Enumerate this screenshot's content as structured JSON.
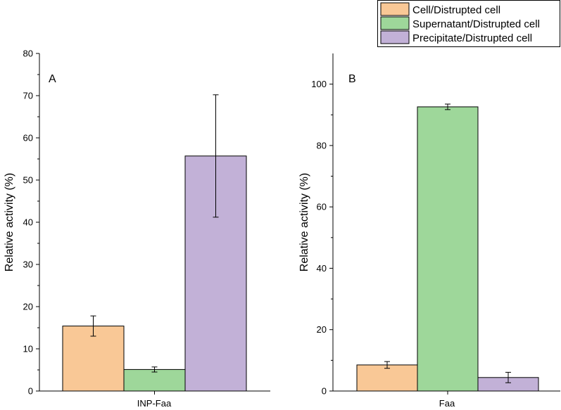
{
  "colors": {
    "cell": "#f9c896",
    "supernatant": "#9ed79a",
    "precipitate": "#c2b1d7",
    "axis": "#000000"
  },
  "legend": {
    "position": "top-right",
    "items": [
      {
        "label": "Cell/Distrupted cell",
        "color_key": "cell"
      },
      {
        "label": "Supernatant/Distrupted cell",
        "color_key": "supernatant"
      },
      {
        "label": "Precipitate/Distrupted cell",
        "color_key": "precipitate"
      }
    ]
  },
  "chart_data": [
    {
      "type": "bar",
      "panel_label": "A",
      "categories": [
        "INP-Faa"
      ],
      "ylabel": "Relative activity (%)",
      "xlabel": "",
      "ylim": [
        0,
        80
      ],
      "yticks": [
        0,
        10,
        20,
        30,
        40,
        50,
        60,
        70,
        80
      ],
      "series": [
        {
          "name": "Cell/Distrupted cell",
          "color_key": "cell",
          "values": [
            15.4
          ],
          "errors": [
            2.4
          ]
        },
        {
          "name": "Supernatant/Distrupted cell",
          "color_key": "supernatant",
          "values": [
            5.1
          ],
          "errors": [
            0.6
          ]
        },
        {
          "name": "Precipitate/Distrupted cell",
          "color_key": "precipitate",
          "values": [
            55.7
          ],
          "errors": [
            14.5
          ]
        }
      ]
    },
    {
      "type": "bar",
      "panel_label": "B",
      "categories": [
        "Faa"
      ],
      "ylabel": "Relative activity (%)",
      "xlabel": "",
      "ylim": [
        0,
        110
      ],
      "yticks": [
        0,
        20,
        40,
        60,
        80,
        100
      ],
      "series": [
        {
          "name": "Cell/Distrupted cell",
          "color_key": "cell",
          "values": [
            8.5
          ],
          "errors": [
            1.1
          ]
        },
        {
          "name": "Supernatant/Distrupted cell",
          "color_key": "supernatant",
          "values": [
            92.6
          ],
          "errors": [
            0.9
          ]
        },
        {
          "name": "Precipitate/Distrupted cell",
          "color_key": "precipitate",
          "values": [
            4.4
          ],
          "errors": [
            1.7
          ]
        }
      ]
    }
  ]
}
